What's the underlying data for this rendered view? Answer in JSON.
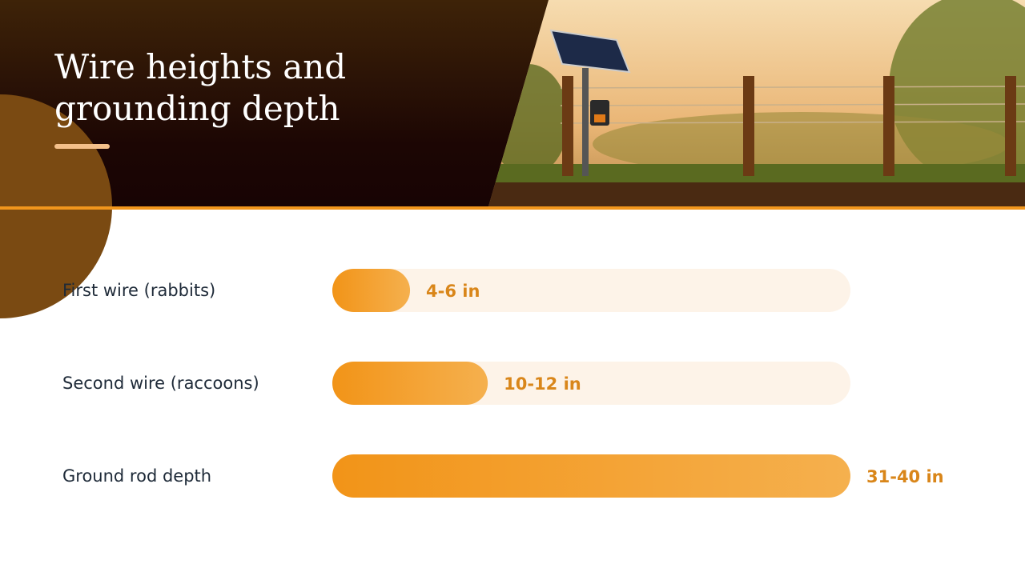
{
  "chart_data": {
    "type": "bar",
    "orientation": "horizontal",
    "title": "Wire heights and grounding depth",
    "categories": [
      "First wire (rabbits)",
      "Second wire (raccoons)",
      "Ground rod depth"
    ],
    "values": [
      6,
      12,
      40
    ],
    "value_labels": [
      "4-6 in",
      "10-12 in",
      "31-40 in"
    ],
    "xlim": [
      0,
      40
    ],
    "color": "#f29418",
    "track_color": "#fdf3e8"
  }
}
